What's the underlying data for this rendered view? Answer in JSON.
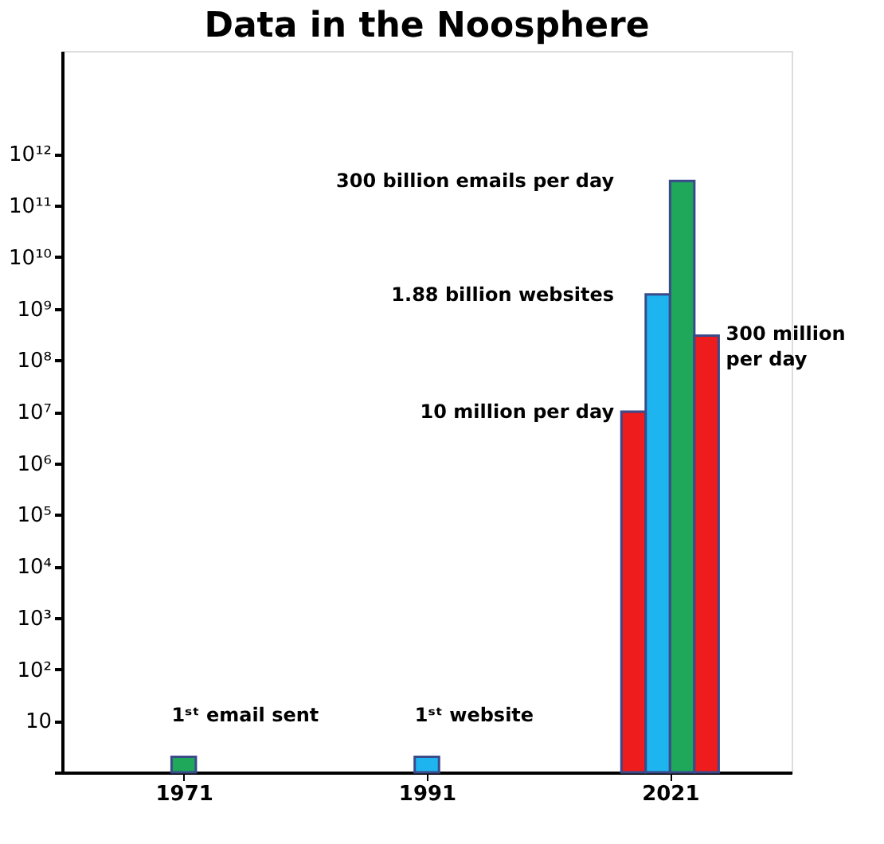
{
  "chart_data": {
    "type": "bar",
    "title": "Data in the Noosphere",
    "categories": [
      "1971",
      "1991",
      "2021"
    ],
    "series": [
      {
        "color": "#ee1c1c",
        "values": [
          null,
          null,
          10000000
        ]
      },
      {
        "color": "#1eb4ef",
        "values": [
          null,
          2,
          1880000000
        ]
      },
      {
        "color": "#1fa85a",
        "values": [
          2,
          null,
          300000000000
        ]
      },
      {
        "color": "#ee1c1c",
        "values": [
          null,
          null,
          300000000
        ]
      }
    ],
    "log": true,
    "ylim": [
      1,
      100000000000000
    ],
    "yticks": [
      {
        "value": 1,
        "label": null
      },
      10,
      {
        "value": 100,
        "label": "10²"
      },
      {
        "value": 1000,
        "label": "10³"
      },
      {
        "value": 10000,
        "label": "10⁴"
      },
      {
        "value": 100000,
        "label": "10⁵"
      },
      {
        "value": 1000000,
        "label": "10⁶"
      },
      {
        "value": 10000000,
        "label": "10⁷"
      },
      {
        "value": 100000000,
        "label": "10⁸"
      },
      {
        "value": 1000000000,
        "label": "10⁹"
      },
      {
        "value": 10000000000,
        "label": "10¹⁰"
      },
      {
        "value": 100000000000,
        "label": "10¹¹"
      },
      {
        "value": 1000000000000,
        "label": "10¹²"
      }
    ],
    "grid": false,
    "annotations": [
      {
        "text": "1ˢᵗ email sent",
        "x": "1971",
        "y": 2
      },
      {
        "text": "1ˢᵗ website",
        "x": "1991",
        "y": 2
      },
      {
        "text": "300 billion emails per day",
        "x": "2021",
        "y": 300000000000
      },
      {
        "text": "1.88 billion websites",
        "x": "2021",
        "y": 1880000000
      },
      {
        "text": "10 million per day",
        "x": "2021",
        "y": 10000000
      },
      {
        "text": "300 million per day",
        "x": "2021",
        "y": 300000000
      }
    ]
  }
}
